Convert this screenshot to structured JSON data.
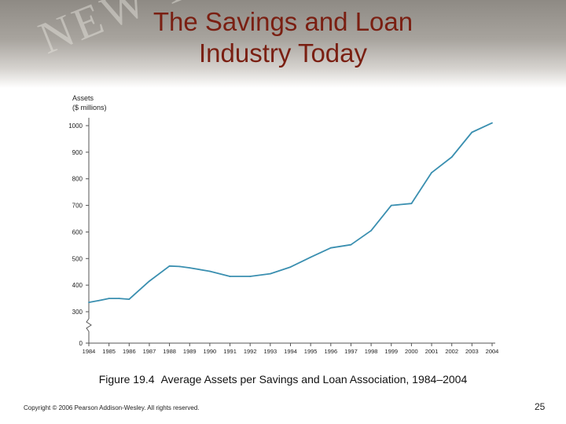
{
  "slide": {
    "title_line1": "The Savings and Loan",
    "title_line2": "Industry Today",
    "caption_label": "Figure 19.4",
    "caption_text": "Average Assets per Savings and Loan Association, 1984–2004",
    "copyright": "Copyright © 2006 Pearson Addison-Wesley. All rights reserved.",
    "page_number": "25",
    "banner_text": "NEW YORK"
  },
  "colors": {
    "title": "#7a1f12",
    "line": "#3a8fb0",
    "axis": "#555555"
  },
  "chart_data": {
    "type": "line",
    "title": "",
    "ylabel_line1": "Assets",
    "ylabel_line2": "($ millions)",
    "xlabel": "",
    "x_ticks": [
      "1984",
      "1985",
      "1986",
      "1987",
      "1988",
      "1989",
      "1990",
      "1991",
      "1992",
      "1993",
      "1994",
      "1995",
      "1996",
      "1997",
      "1998",
      "1999",
      "2000",
      "2001",
      "2002",
      "2003",
      "2004"
    ],
    "y_ticks": [
      0,
      300,
      400,
      500,
      600,
      700,
      800,
      900,
      1000
    ],
    "ylim": [
      0,
      1000
    ],
    "axis_break": "between 0 and 300",
    "grid": false,
    "series": [
      {
        "values": [
          [
            1984.0,
            335
          ],
          [
            1984.5,
            342
          ],
          [
            1985.0,
            350
          ],
          [
            1985.5,
            350
          ],
          [
            1986.0,
            347
          ],
          [
            1987.0,
            415
          ],
          [
            1988.0,
            472
          ],
          [
            1988.5,
            470
          ],
          [
            1989.0,
            465
          ],
          [
            1990.0,
            452
          ],
          [
            1991.0,
            433
          ],
          [
            1992.0,
            433
          ],
          [
            1993.0,
            443
          ],
          [
            1994.0,
            468
          ],
          [
            1995.0,
            505
          ],
          [
            1996.0,
            540
          ],
          [
            1997.0,
            552
          ],
          [
            1998.0,
            605
          ],
          [
            1999.0,
            700
          ],
          [
            2000.0,
            707
          ],
          [
            2001.0,
            823
          ],
          [
            2002.0,
            882
          ],
          [
            2003.0,
            975
          ],
          [
            2004.0,
            1010
          ]
        ]
      }
    ]
  }
}
